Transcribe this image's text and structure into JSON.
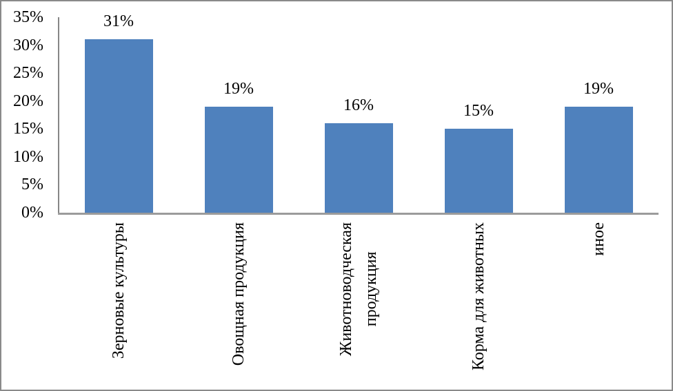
{
  "chart_data": {
    "type": "bar",
    "title": "",
    "xlabel": "",
    "ylabel": "",
    "categories": [
      "Зерновые культуры",
      "Овощная продукция",
      "Животноводческая\nпродукция",
      "Корма для животных",
      "иное"
    ],
    "values": [
      31,
      19,
      16,
      15,
      19
    ],
    "value_labels": [
      "31%",
      "19%",
      "16%",
      "15%",
      "19%"
    ],
    "ylim": [
      0,
      35
    ],
    "ytick_values": [
      0,
      5,
      10,
      15,
      20,
      25,
      30,
      35
    ],
    "ytick_labels": [
      "0%",
      "5%",
      "10%",
      "15%",
      "20%",
      "25%",
      "30%",
      "35%"
    ],
    "grid": false,
    "legend": "none",
    "bar_color": "#4F81BD",
    "axis_color": "#8C8C8C",
    "frame_border_color": "#8A8A8A",
    "text_color": "#000000"
  }
}
